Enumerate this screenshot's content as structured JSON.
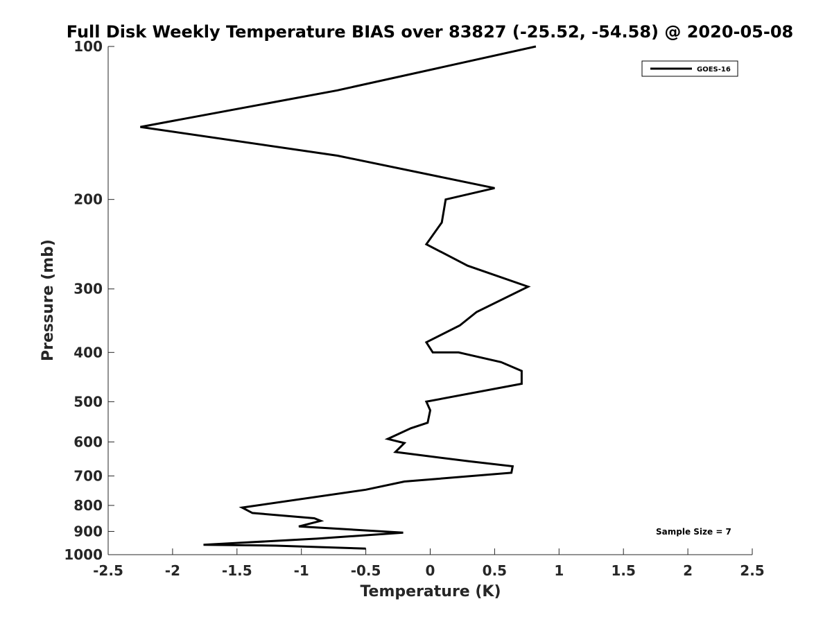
{
  "chart_data": {
    "type": "line",
    "title": "Full Disk Weekly Temperature BIAS over 83827 (-25.52, -54.58) @ 2020-05-08",
    "xlabel": "Temperature (K)",
    "ylabel": "Pressure (mb)",
    "xlim": [
      -2.5,
      2.5
    ],
    "ylim": [
      100,
      1000
    ],
    "y_scale": "log",
    "y_reversed": true,
    "x_ticks": [
      "-2.5",
      "-2",
      "-1.5",
      "-1",
      "-0.5",
      "0",
      "0.5",
      "1",
      "1.5",
      "2",
      "2.5"
    ],
    "y_ticks": [
      "100",
      "200",
      "300",
      "400",
      "500",
      "600",
      "700",
      "800",
      "900",
      "1000"
    ],
    "grid": false,
    "legend_position": "top-right",
    "series": [
      {
        "name": "GOES-16",
        "color": "#000000",
        "points": [
          {
            "x": 0.82,
            "p": 100
          },
          {
            "x": -0.72,
            "p": 122
          },
          {
            "x": -2.25,
            "p": 144
          },
          {
            "x": -0.72,
            "p": 164
          },
          {
            "x": 0.5,
            "p": 190
          },
          {
            "x": 0.12,
            "p": 200
          },
          {
            "x": 0.09,
            "p": 222
          },
          {
            "x": -0.03,
            "p": 245
          },
          {
            "x": 0.29,
            "p": 270
          },
          {
            "x": 0.76,
            "p": 297
          },
          {
            "x": 0.36,
            "p": 333
          },
          {
            "x": 0.23,
            "p": 354
          },
          {
            "x": -0.03,
            "p": 382
          },
          {
            "x": 0.02,
            "p": 400
          },
          {
            "x": 0.22,
            "p": 400
          },
          {
            "x": 0.55,
            "p": 418
          },
          {
            "x": 0.71,
            "p": 435
          },
          {
            "x": 0.71,
            "p": 461
          },
          {
            "x": -0.03,
            "p": 500
          },
          {
            "x": 0.0,
            "p": 520
          },
          {
            "x": -0.02,
            "p": 550
          },
          {
            "x": -0.15,
            "p": 564
          },
          {
            "x": -0.33,
            "p": 592
          },
          {
            "x": -0.2,
            "p": 603
          },
          {
            "x": -0.27,
            "p": 628
          },
          {
            "x": 0.3,
            "p": 655
          },
          {
            "x": 0.64,
            "p": 670
          },
          {
            "x": 0.63,
            "p": 690
          },
          {
            "x": -0.2,
            "p": 718
          },
          {
            "x": -0.5,
            "p": 745
          },
          {
            "x": -1.46,
            "p": 808
          },
          {
            "x": -1.38,
            "p": 828
          },
          {
            "x": -0.9,
            "p": 848
          },
          {
            "x": -0.85,
            "p": 858
          },
          {
            "x": -1.02,
            "p": 880
          },
          {
            "x": -0.21,
            "p": 905
          },
          {
            "x": -0.88,
            "p": 930
          },
          {
            "x": -1.76,
            "p": 956
          },
          {
            "x": -1.2,
            "p": 960
          },
          {
            "x": -0.5,
            "p": 973
          }
        ]
      }
    ],
    "annotations": [
      "Sample Size = 7"
    ]
  }
}
